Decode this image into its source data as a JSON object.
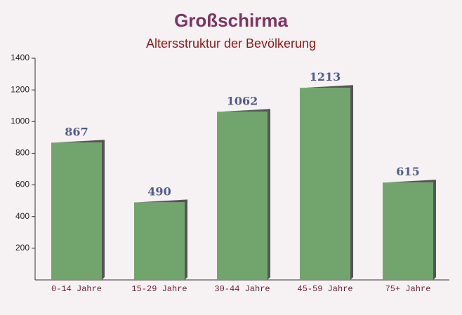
{
  "chart_data": {
    "type": "bar",
    "title": "Großschirma",
    "subtitle": "Altersstruktur der Bevölkerung",
    "categories": [
      "0-14 Jahre",
      "15-29 Jahre",
      "30-44 Jahre",
      "45-59 Jahre",
      "75+ Jahre"
    ],
    "values": [
      867,
      490,
      1062,
      1213,
      615
    ],
    "color": "#6aa066",
    "ylim": [
      0,
      1400
    ],
    "yticks": [
      200,
      400,
      600,
      800,
      1000,
      1200,
      1400
    ]
  }
}
